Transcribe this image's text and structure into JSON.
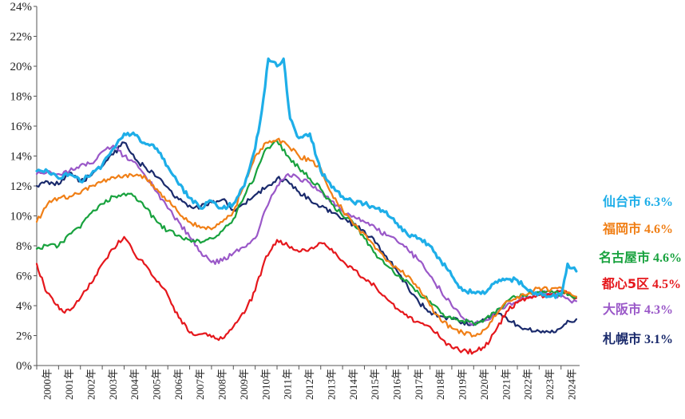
{
  "chart_data": {
    "type": "line",
    "title": "",
    "xlabel": "",
    "ylabel": "",
    "y_unit": "%",
    "ylim": [
      0,
      24
    ],
    "yticks": [
      "0%",
      "2%",
      "4%",
      "6%",
      "8%",
      "10%",
      "12%",
      "14%",
      "16%",
      "18%",
      "20%",
      "22%",
      "24%"
    ],
    "xlim": [
      2000.0,
      2024.85
    ],
    "xticks": [
      "2000年",
      "2001年",
      "2002年",
      "2003年",
      "2004年",
      "2005年",
      "2006年",
      "2007年",
      "2008年",
      "2009年",
      "2010年",
      "2011年",
      "2012年",
      "2013年",
      "2014年",
      "2015年",
      "2016年",
      "2017年",
      "2018年",
      "2019年",
      "2020年",
      "2021年",
      "2022年",
      "2023年",
      "2024年"
    ],
    "grid": false,
    "legend_placement": "right, inline labels",
    "series": [
      {
        "name": "仙台市",
        "value_label": "6.3%",
        "color": "#1eaee8",
        "bold": true,
        "x": [
          2000.0,
          2000.5,
          2001.0,
          2001.5,
          2002.0,
          2002.5,
          2003.0,
          2003.5,
          2004.0,
          2004.5,
          2005.0,
          2005.5,
          2006.0,
          2006.5,
          2007.0,
          2007.5,
          2008.0,
          2008.5,
          2009.0,
          2009.5,
          2010.0,
          2010.3,
          2010.6,
          2011.0,
          2011.3,
          2011.6,
          2012.0,
          2012.5,
          2013.0,
          2013.5,
          2014.0,
          2014.5,
          2015.0,
          2015.5,
          2016.0,
          2016.5,
          2017.0,
          2017.5,
          2018.0,
          2018.5,
          2019.0,
          2019.5,
          2020.0,
          2020.5,
          2021.0,
          2021.5,
          2022.0,
          2022.5,
          2023.0,
          2023.5,
          2024.0,
          2024.3,
          2024.5,
          2024.7
        ],
        "y": [
          13.0,
          13.0,
          12.5,
          12.8,
          12.3,
          12.8,
          13.4,
          14.5,
          15.5,
          15.4,
          14.8,
          14.5,
          13.3,
          12.1,
          11.2,
          10.5,
          11.0,
          10.5,
          10.8,
          12.0,
          14.5,
          17.0,
          20.5,
          20.0,
          20.5,
          16.5,
          15.2,
          15.5,
          13.0,
          11.9,
          11.3,
          10.9,
          10.8,
          10.5,
          10.3,
          9.5,
          8.7,
          8.5,
          8.0,
          7.0,
          6.0,
          5.0,
          4.9,
          4.8,
          5.6,
          5.8,
          5.7,
          5.0,
          4.8,
          4.6,
          4.7,
          6.8,
          6.5,
          6.3
        ]
      },
      {
        "name": "福岡市",
        "value_label": "4.6%",
        "color": "#f07f16",
        "bold": false,
        "x": [
          2000.0,
          2000.5,
          2001.0,
          2001.5,
          2002.0,
          2002.5,
          2003.0,
          2003.5,
          2004.0,
          2004.5,
          2005.0,
          2005.5,
          2006.0,
          2006.5,
          2007.0,
          2007.5,
          2008.0,
          2008.5,
          2009.0,
          2009.5,
          2010.0,
          2010.5,
          2011.0,
          2011.5,
          2012.0,
          2012.5,
          2013.0,
          2013.5,
          2014.0,
          2014.5,
          2015.0,
          2015.5,
          2016.0,
          2016.5,
          2017.0,
          2017.5,
          2018.0,
          2018.5,
          2019.0,
          2019.5,
          2020.0,
          2020.5,
          2021.0,
          2021.5,
          2022.0,
          2022.5,
          2023.0,
          2023.5,
          2024.0,
          2024.3,
          2024.5,
          2024.7
        ],
        "y": [
          9.6,
          10.8,
          11.2,
          11.3,
          11.5,
          12.0,
          12.3,
          12.6,
          12.7,
          12.7,
          12.5,
          11.8,
          11.0,
          10.2,
          9.6,
          9.2,
          9.1,
          9.6,
          10.3,
          12.0,
          14.0,
          14.9,
          15.1,
          14.7,
          14.0,
          13.7,
          13.2,
          11.5,
          10.4,
          9.4,
          8.8,
          7.8,
          7.0,
          6.5,
          6.0,
          5.2,
          4.0,
          3.0,
          2.5,
          2.2,
          2.0,
          2.4,
          3.3,
          4.3,
          4.6,
          4.8,
          5.2,
          5.0,
          5.2,
          4.9,
          4.7,
          4.6
        ]
      },
      {
        "name": "名古屋市",
        "value_label": "4.6%",
        "color": "#18a23e",
        "bold": false,
        "x": [
          2000.0,
          2000.5,
          2001.0,
          2001.5,
          2002.0,
          2002.5,
          2003.0,
          2003.5,
          2004.0,
          2004.5,
          2005.0,
          2005.5,
          2006.0,
          2006.5,
          2007.0,
          2007.5,
          2008.0,
          2008.5,
          2009.0,
          2009.5,
          2010.0,
          2010.5,
          2011.0,
          2011.5,
          2012.0,
          2012.5,
          2013.0,
          2013.5,
          2014.0,
          2014.5,
          2015.0,
          2015.5,
          2016.0,
          2016.5,
          2017.0,
          2017.5,
          2018.0,
          2018.5,
          2019.0,
          2019.5,
          2020.0,
          2020.5,
          2021.0,
          2021.5,
          2022.0,
          2022.5,
          2023.0,
          2023.5,
          2024.0,
          2024.3,
          2024.5,
          2024.7
        ],
        "y": [
          7.8,
          8.0,
          8.0,
          8.8,
          9.2,
          10.2,
          10.8,
          11.3,
          11.5,
          11.3,
          10.5,
          9.6,
          9.0,
          8.7,
          8.4,
          8.2,
          8.5,
          9.0,
          9.8,
          11.3,
          12.7,
          14.5,
          15.0,
          14.0,
          13.2,
          12.5,
          11.8,
          10.8,
          10.0,
          9.5,
          8.5,
          7.5,
          6.7,
          6.0,
          5.6,
          4.8,
          4.3,
          3.5,
          3.1,
          3.0,
          2.8,
          3.1,
          3.5,
          4.3,
          4.6,
          4.8,
          4.9,
          4.9,
          4.8,
          4.7,
          4.6,
          4.6
        ]
      },
      {
        "name": "都心5区",
        "value_label": "4.5%",
        "color": "#e5171c",
        "bold": false,
        "x": [
          2000.0,
          2000.4,
          2000.8,
          2001.2,
          2001.6,
          2002.0,
          2002.5,
          2003.0,
          2003.5,
          2004.0,
          2004.5,
          2005.0,
          2005.5,
          2006.0,
          2006.5,
          2007.0,
          2007.5,
          2008.0,
          2008.5,
          2009.0,
          2009.5,
          2010.0,
          2010.5,
          2011.0,
          2011.5,
          2012.0,
          2012.5,
          2013.0,
          2013.5,
          2014.0,
          2014.5,
          2015.0,
          2015.5,
          2016.0,
          2016.5,
          2017.0,
          2017.5,
          2018.0,
          2018.5,
          2019.0,
          2019.5,
          2020.0,
          2020.5,
          2021.0,
          2021.5,
          2022.0,
          2022.5,
          2023.0,
          2023.5,
          2024.0,
          2024.3,
          2024.5,
          2024.7
        ],
        "y": [
          6.8,
          5.0,
          4.2,
          3.6,
          3.8,
          4.5,
          5.5,
          6.8,
          7.8,
          8.6,
          7.4,
          6.7,
          5.6,
          4.7,
          3.2,
          2.2,
          2.1,
          1.9,
          1.8,
          2.6,
          3.5,
          5.0,
          7.3,
          8.4,
          8.0,
          7.6,
          7.8,
          8.2,
          7.8,
          7.0,
          6.4,
          5.8,
          5.3,
          4.5,
          3.8,
          3.2,
          2.9,
          2.6,
          1.8,
          1.2,
          1.0,
          0.9,
          1.2,
          2.3,
          3.6,
          4.2,
          4.5,
          4.7,
          4.7,
          5.0,
          4.8,
          4.6,
          4.5
        ]
      },
      {
        "name": "大阪市",
        "value_label": "4.3%",
        "color": "#9a58c8",
        "bold": false,
        "x": [
          2000.0,
          2000.5,
          2001.0,
          2001.5,
          2002.0,
          2002.5,
          2003.0,
          2003.5,
          2004.0,
          2004.5,
          2005.0,
          2005.5,
          2006.0,
          2006.5,
          2007.0,
          2007.5,
          2008.0,
          2008.5,
          2009.0,
          2009.5,
          2010.0,
          2010.5,
          2011.0,
          2011.5,
          2012.0,
          2012.5,
          2013.0,
          2013.5,
          2014.0,
          2014.5,
          2015.0,
          2015.5,
          2016.0,
          2016.5,
          2017.0,
          2017.5,
          2018.0,
          2018.5,
          2019.0,
          2019.5,
          2020.0,
          2020.5,
          2021.0,
          2021.5,
          2022.0,
          2022.5,
          2023.0,
          2023.5,
          2024.0,
          2024.3,
          2024.5,
          2024.7
        ],
        "y": [
          12.8,
          13.0,
          12.8,
          13.0,
          13.4,
          13.5,
          14.3,
          14.7,
          14.0,
          13.6,
          12.6,
          11.6,
          10.5,
          9.6,
          8.6,
          7.6,
          6.9,
          7.0,
          7.5,
          7.9,
          8.5,
          10.5,
          12.0,
          12.8,
          12.5,
          12.2,
          11.6,
          11.0,
          10.3,
          10.0,
          9.6,
          9.2,
          8.7,
          8.3,
          7.7,
          7.0,
          6.0,
          5.0,
          4.0,
          3.2,
          2.8,
          3.0,
          3.5,
          4.0,
          4.3,
          4.6,
          4.9,
          4.8,
          4.6,
          4.5,
          4.2,
          4.3
        ]
      },
      {
        "name": "札幌市",
        "value_label": "3.1%",
        "color": "#1a2a6c",
        "bold": false,
        "x": [
          2000.0,
          2000.5,
          2001.0,
          2001.5,
          2002.0,
          2002.5,
          2003.0,
          2003.5,
          2004.0,
          2004.5,
          2005.0,
          2005.5,
          2006.0,
          2006.5,
          2007.0,
          2007.5,
          2008.0,
          2008.5,
          2009.0,
          2009.5,
          2010.0,
          2010.5,
          2011.0,
          2011.5,
          2012.0,
          2012.5,
          2013.0,
          2013.5,
          2014.0,
          2014.5,
          2015.0,
          2015.5,
          2016.0,
          2016.5,
          2017.0,
          2017.5,
          2018.0,
          2018.5,
          2019.0,
          2019.5,
          2020.0,
          2020.5,
          2021.0,
          2021.5,
          2022.0,
          2022.5,
          2023.0,
          2023.5,
          2024.0,
          2024.3,
          2024.5,
          2024.7
        ],
        "y": [
          12.0,
          12.3,
          12.1,
          12.9,
          12.3,
          12.7,
          13.3,
          14.1,
          14.9,
          13.8,
          13.2,
          12.6,
          11.9,
          11.1,
          10.7,
          10.6,
          10.9,
          11.1,
          10.4,
          10.8,
          11.4,
          11.9,
          12.5,
          12.3,
          11.6,
          11.1,
          10.6,
          10.2,
          9.8,
          9.4,
          9.0,
          8.2,
          7.3,
          6.3,
          5.2,
          4.2,
          3.6,
          3.3,
          3.1,
          2.9,
          2.7,
          3.0,
          3.5,
          3.2,
          2.7,
          2.4,
          2.3,
          2.2,
          2.5,
          3.0,
          2.9,
          3.1
        ]
      }
    ]
  }
}
